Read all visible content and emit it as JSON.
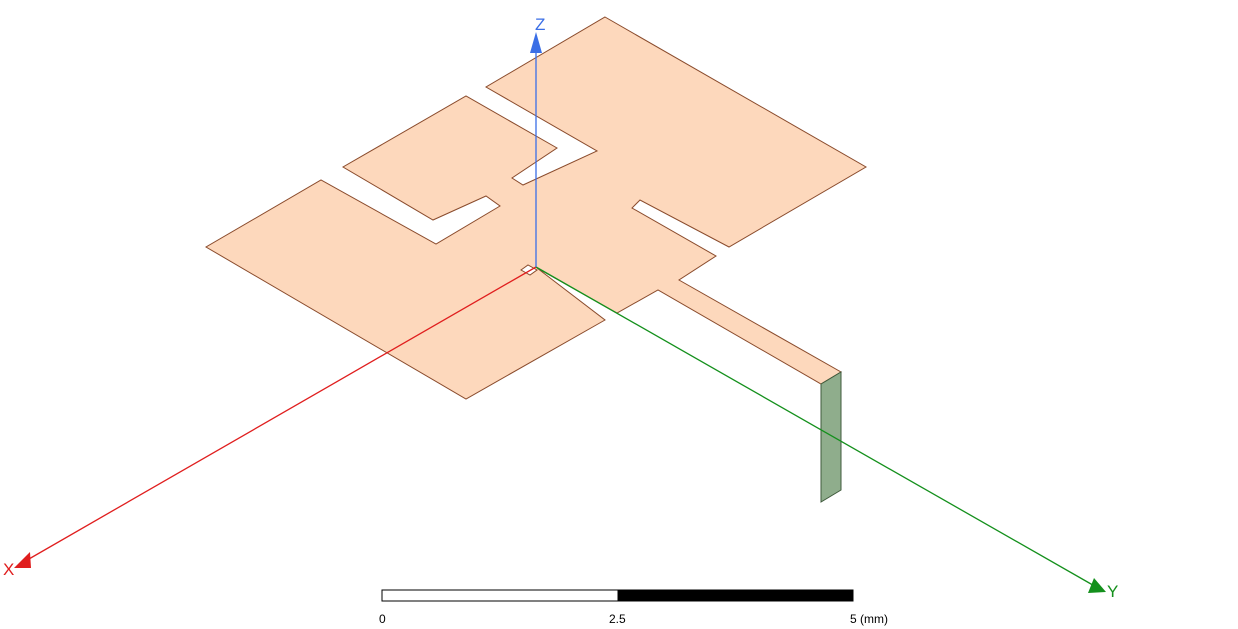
{
  "viewport": {
    "background": "#ffffff",
    "patch_fill": "#fdd8bc",
    "patch_edge": "#8a4b2c",
    "port_fill": "#8fad8c",
    "port_edge": "#3f5a3c"
  },
  "axes": {
    "x": {
      "label": "X",
      "color": "#e01e1e"
    },
    "y": {
      "label": "Y",
      "color": "#14901c"
    },
    "z": {
      "label": "Z",
      "color": "#3a6ee6"
    }
  },
  "scale_bar": {
    "ticks": [
      "0",
      "2.5",
      "5 (mm)"
    ]
  }
}
